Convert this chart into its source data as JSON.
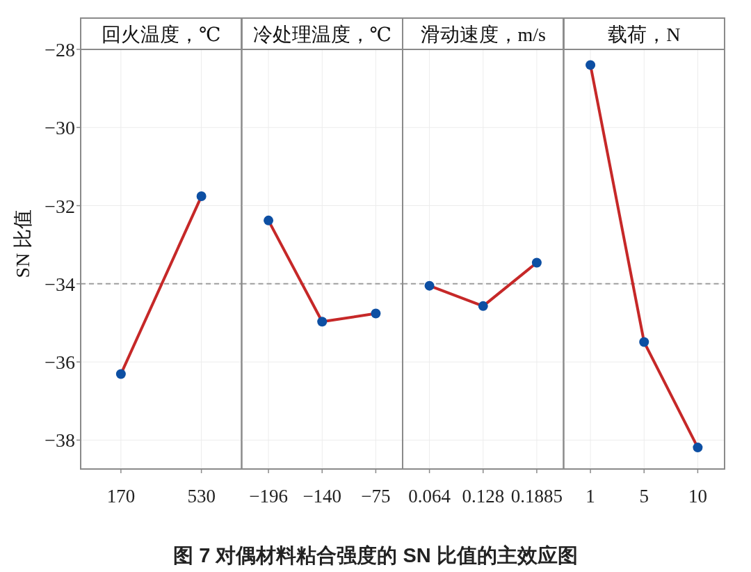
{
  "chart_data": [
    {
      "type": "line",
      "title": "回火温度，℃",
      "ylabel": "SN 比值",
      "categories": [
        "170",
        "530"
      ],
      "series": [
        {
          "color": "#c62828",
          "colors": [
            "#0d4fa3",
            "#0d4fa3"
          ],
          "values": [
            -36.31,
            -31.76
          ]
        }
      ],
      "ylim": [
        -38.74,
        -27.2
      ],
      "yticks": [
        -38,
        -36,
        -34,
        -32,
        -30,
        -28
      ],
      "grid": true,
      "marker": "circle",
      "ref_lines": [
        {
          "axis": "y",
          "value": -34.0,
          "color": "#9e9e9e",
          "line_style": "dashed"
        }
      ],
      "annotations": [
        "图 7  对偶材料粘合强度的 SN 比值的主效应图"
      ]
    },
    {
      "type": "line",
      "title": "冷处理温度，℃",
      "categories": [
        "−196",
        "−140",
        "−75"
      ],
      "series": [
        {
          "color": "#c62828",
          "colors": [
            "#0d4fa3",
            "#0d4fa3",
            "#0d4fa3"
          ],
          "values": [
            -32.38,
            -34.97,
            -34.76
          ]
        }
      ],
      "ylim": [
        -38.74,
        -27.2
      ],
      "yticks": [
        -38,
        -36,
        -34,
        -32,
        -30,
        -28
      ],
      "tick_labels": "x",
      "grid": true,
      "marker": "circle",
      "ref_lines": [
        {
          "axis": "y",
          "value": -34.0,
          "color": "#9e9e9e",
          "line_style": "dashed"
        }
      ]
    },
    {
      "type": "line",
      "title": "滑动速度，m/s",
      "categories": [
        "0.064",
        "0.128",
        "0.1885"
      ],
      "series": [
        {
          "color": "#c62828",
          "colors": [
            "#0d4fa3",
            "#0d4fa3",
            "#0d4fa3"
          ],
          "values": [
            -34.05,
            -34.57,
            -33.46
          ]
        }
      ],
      "ylim": [
        -38.74,
        -27.2
      ],
      "yticks": [
        -38,
        -36,
        -34,
        -32,
        -30,
        -28
      ],
      "tick_labels": "x",
      "grid": true,
      "marker": "circle",
      "ref_lines": [
        {
          "axis": "y",
          "value": -34.0,
          "color": "#9e9e9e",
          "line_style": "dashed"
        }
      ]
    },
    {
      "type": "line",
      "title": "载荷，N",
      "categories": [
        "1",
        "5",
        "10"
      ],
      "series": [
        {
          "color": "#c62828",
          "colors": [
            "#0d4fa3",
            "#0d4fa3",
            "#0d4fa3"
          ],
          "values": [
            -28.4,
            -35.49,
            -38.19
          ]
        }
      ],
      "ylim": [
        -38.74,
        -27.2
      ],
      "yticks": [
        -38,
        -36,
        -34,
        -32,
        -30,
        -28
      ],
      "tick_labels": "x",
      "grid": true,
      "marker": "circle",
      "ref_lines": [
        {
          "axis": "y",
          "value": -34.0,
          "color": "#9e9e9e",
          "line_style": "dashed"
        }
      ]
    }
  ]
}
